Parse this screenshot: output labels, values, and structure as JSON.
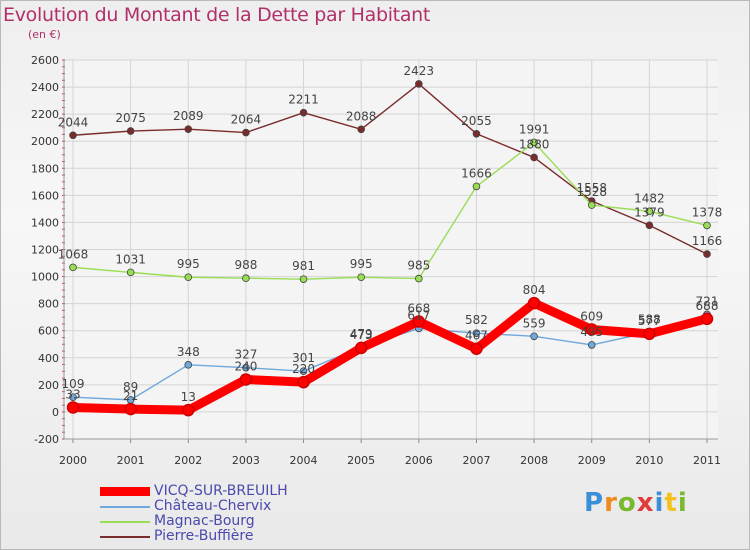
{
  "title": "Evolution du Montant de la Dette par Habitant",
  "unit_label": "(en €)",
  "logo_text": "Proxiti",
  "chart_data": {
    "type": "line",
    "title": "Evolution du Montant de la Dette par Habitant",
    "subtitle": "(en €)",
    "x": [
      "2000",
      "2001",
      "2002",
      "2003",
      "2004",
      "2005",
      "2006",
      "2007",
      "2008",
      "2009",
      "2010",
      "2011"
    ],
    "ylim": [
      -200,
      2600
    ],
    "yticks": [
      "-200",
      "0",
      "200",
      "400",
      "600",
      "800",
      "1000",
      "1200",
      "1400",
      "1600",
      "1800",
      "2000",
      "2200",
      "2400",
      "2600"
    ],
    "grid": true,
    "legend_position": "bottom-left",
    "series": [
      {
        "name": "Pierre-Buffière",
        "color": "#7a2c2c",
        "values": [
          2044,
          2075,
          2089,
          2064,
          2211,
          2088,
          2423,
          2055,
          1880,
          1558,
          1379,
          1166
        ],
        "labels": [
          "2044",
          "2075",
          "2089",
          "2064",
          "2211",
          "2088",
          "2423",
          "2055",
          "1880",
          "1558",
          "1379",
          "1166"
        ]
      },
      {
        "name": "Magnac-Bourg",
        "color": "#99dd55",
        "values": [
          1068,
          1031,
          995,
          988,
          981,
          995,
          985,
          1666,
          1991,
          1528,
          1482,
          1378
        ],
        "labels": [
          "1068",
          "1031",
          "995",
          "988",
          "981",
          "995",
          "985",
          "1666",
          "1991",
          "1528",
          "1482",
          "1378"
        ]
      },
      {
        "name": "Château-Chervix",
        "color": "#6fa8dc",
        "values": [
          109,
          89,
          348,
          327,
          301,
          479,
          617,
          582,
          559,
          495,
          588,
          721
        ],
        "labels": [
          "109",
          "89",
          "348",
          "327",
          "301",
          "479",
          "617",
          "582",
          "559",
          "495",
          "588",
          "721"
        ]
      },
      {
        "name": "VICQ-SUR-BREUILH",
        "color": "#ff0000",
        "values": [
          33,
          21,
          13,
          240,
          220,
          473,
          668,
          467,
          804,
          609,
          577,
          688
        ],
        "labels": [
          "33",
          "21",
          "13",
          "240",
          "220",
          "473",
          "668",
          "467",
          "804",
          "609",
          "577",
          "688"
        ]
      }
    ],
    "legend": [
      {
        "name": "VICQ-SUR-BREUILH",
        "color": "#ff0000"
      },
      {
        "name": "Château-Chervix",
        "color": "#6fa8dc"
      },
      {
        "name": "Magnac-Bourg",
        "color": "#99dd55"
      },
      {
        "name": "Pierre-Buffière",
        "color": "#7a2c2c"
      }
    ]
  }
}
